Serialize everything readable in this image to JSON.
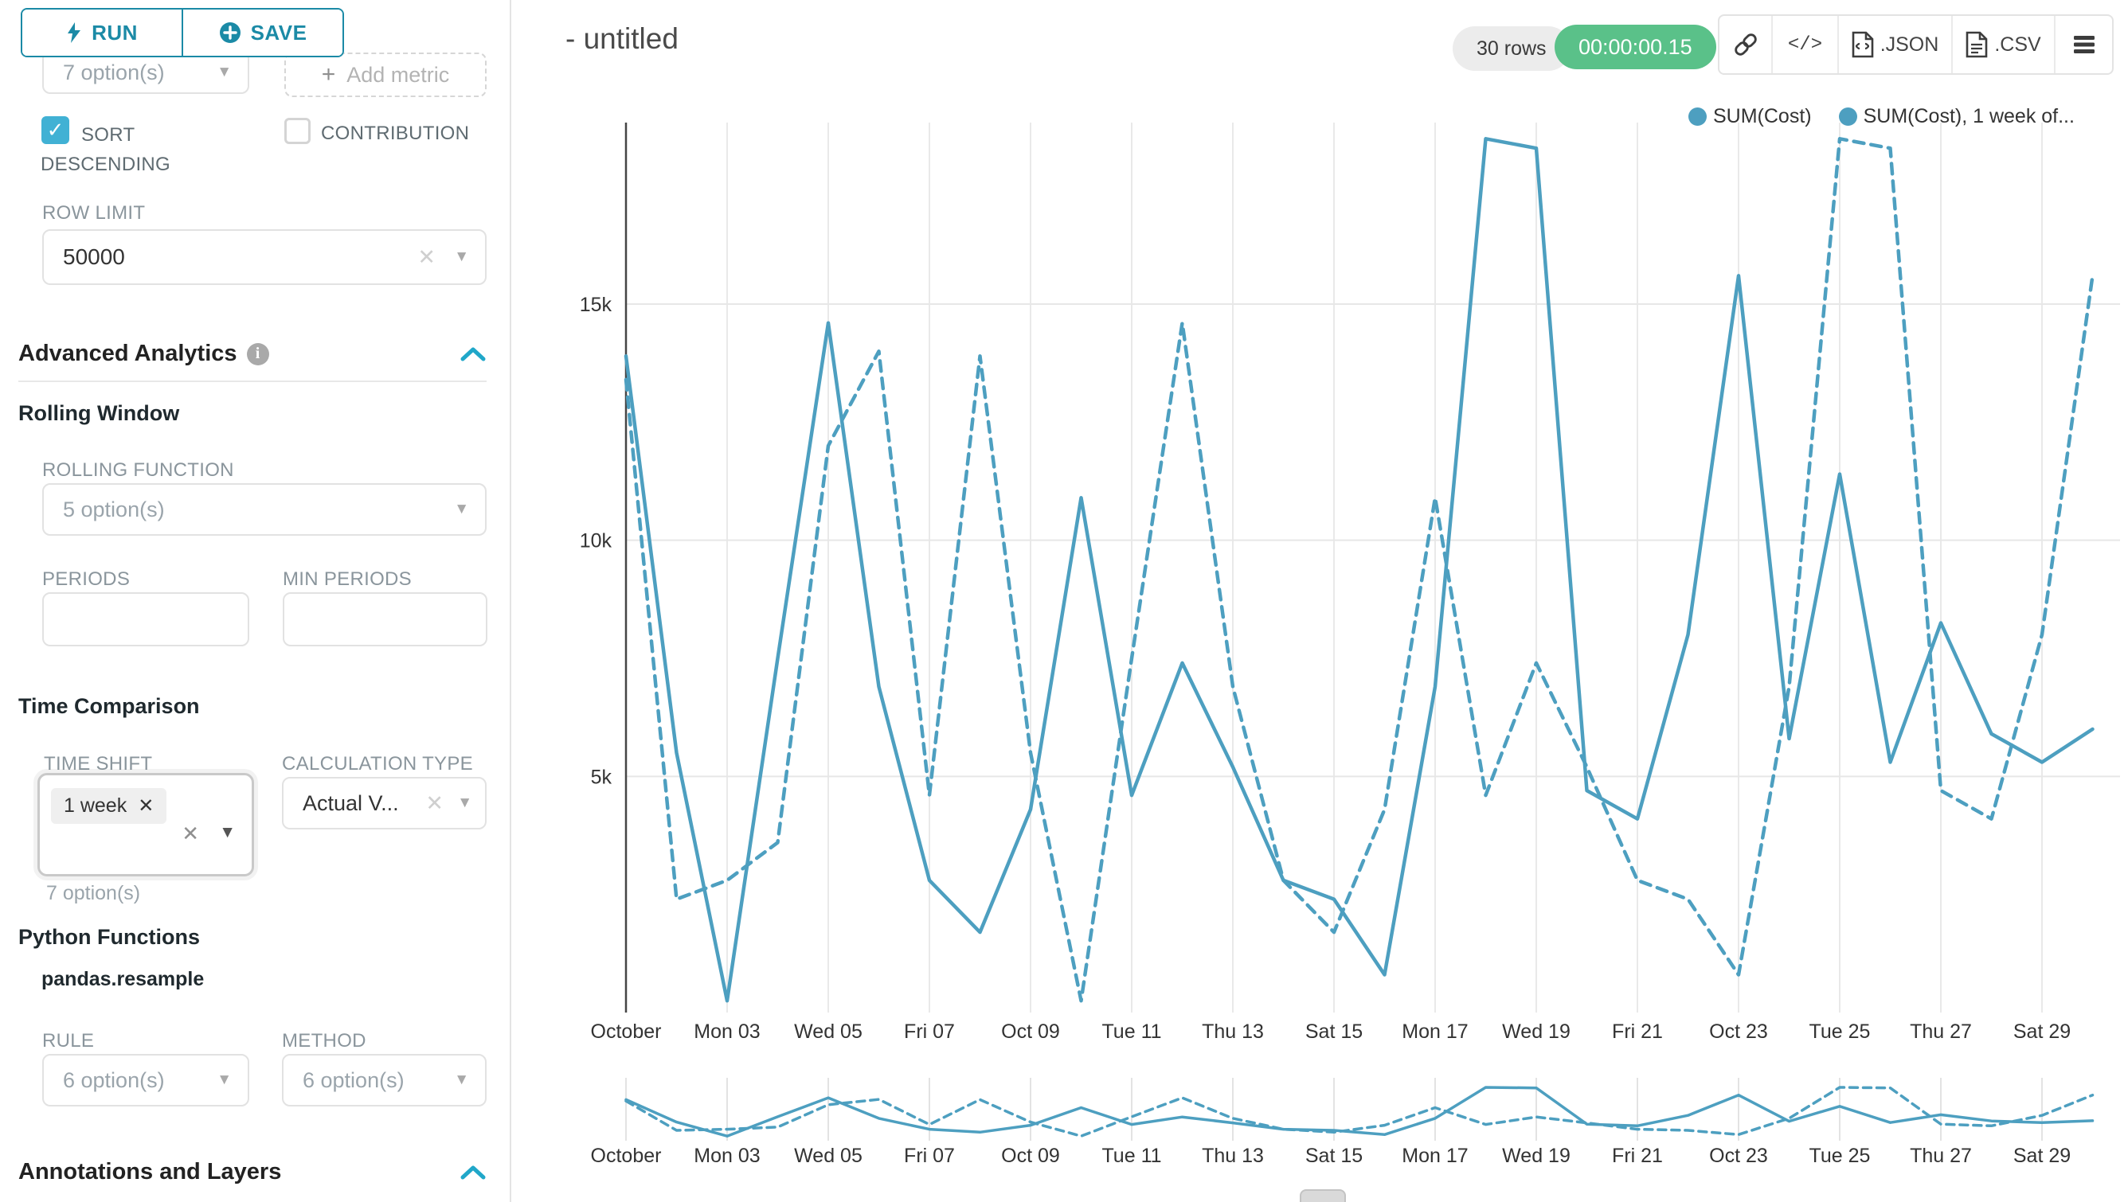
{
  "accent_teal": "#1b8aa6",
  "header": {
    "title": "- untitled",
    "rows_badge": "30 rows",
    "timer_badge": "00:00:00.15",
    "timer_color": "#5ac189",
    "toolbar": {
      "json_label": ".JSON",
      "csv_label": ".CSV"
    }
  },
  "sidebar": {
    "run_label": "RUN",
    "save_label": "SAVE",
    "metric_select_value": "7 option(s)",
    "add_metric_label": "Add metric",
    "sort_descending_label": "SORT DESCENDING",
    "sort_descending_checked": true,
    "contribution_label": "CONTRIBUTION",
    "contribution_checked": false,
    "row_limit_label": "ROW LIMIT",
    "row_limit_value": "50000",
    "advanced_analytics_title": "Advanced Analytics",
    "rolling_window": {
      "title": "Rolling Window",
      "rolling_function_label": "ROLLING FUNCTION",
      "rolling_function_value": "5 option(s)",
      "periods_label": "PERIODS",
      "min_periods_label": "MIN PERIODS"
    },
    "time_comparison": {
      "title": "Time Comparison",
      "time_shift_label": "TIME SHIFT",
      "time_shift_tag": "1 week",
      "time_shift_helper": "7 option(s)",
      "calculation_type_label": "CALCULATION TYPE",
      "calculation_type_value": "Actual V..."
    },
    "python_functions": {
      "title": "Python Functions",
      "function_name": "pandas.resample",
      "rule_label": "RULE",
      "rule_value": "6 option(s)",
      "method_label": "METHOD",
      "method_value": "6 option(s)"
    },
    "annotations_title": "Annotations and Layers"
  },
  "chart_data": {
    "type": "line",
    "line_color": "#4d9fc0",
    "ylim": [
      0,
      18800
    ],
    "yticks": [
      5000,
      10000,
      15000
    ],
    "ytick_labels": [
      "5k",
      "10k",
      "15k"
    ],
    "x": [
      "Oct 01",
      "Oct 02",
      "Oct 03",
      "Oct 04",
      "Oct 05",
      "Oct 06",
      "Oct 07",
      "Oct 08",
      "Oct 09",
      "Oct 10",
      "Oct 11",
      "Oct 12",
      "Oct 13",
      "Oct 14",
      "Oct 15",
      "Oct 16",
      "Oct 17",
      "Oct 18",
      "Oct 19",
      "Oct 20",
      "Oct 21",
      "Oct 22",
      "Oct 23",
      "Oct 24",
      "Oct 25",
      "Oct 26",
      "Oct 27",
      "Oct 28",
      "Oct 29",
      "Oct 30"
    ],
    "x_tick_indices": [
      0,
      2,
      4,
      6,
      8,
      10,
      12,
      14,
      16,
      18,
      20,
      22,
      24,
      26,
      28
    ],
    "x_tick_labels": [
      "October",
      "Mon 03",
      "Wed 05",
      "Fri 07",
      "Oct 09",
      "Tue 11",
      "Thu 13",
      "Sat 15",
      "Mon 17",
      "Wed 19",
      "Fri 21",
      "Oct 23",
      "Tue 25",
      "Thu 27",
      "Sat 29"
    ],
    "legend": [
      "SUM(Cost)",
      "SUM(Cost), 1 week of..."
    ],
    "series": [
      {
        "name": "SUM(Cost)",
        "dash": "solid",
        "values": [
          13900,
          5500,
          250,
          7500,
          14600,
          6900,
          2800,
          1700,
          4300,
          10900,
          4600,
          7400,
          5200,
          2800,
          2400,
          800,
          6900,
          18500,
          18300,
          4700,
          4100,
          8000,
          15600,
          5800,
          11400,
          5300,
          8250,
          5900,
          5300,
          6000
        ]
      },
      {
        "name": "SUM(Cost), 1 week offset",
        "dash": "dashed",
        "values": [
          13400,
          2400,
          2800,
          3600,
          12000,
          14000,
          4600,
          13900,
          5500,
          250,
          7500,
          14600,
          6900,
          2800,
          1700,
          4300,
          10900,
          4600,
          7400,
          5200,
          2800,
          2400,
          800,
          6900,
          18500,
          18300,
          4700,
          4100,
          8000,
          15600
        ]
      }
    ]
  }
}
